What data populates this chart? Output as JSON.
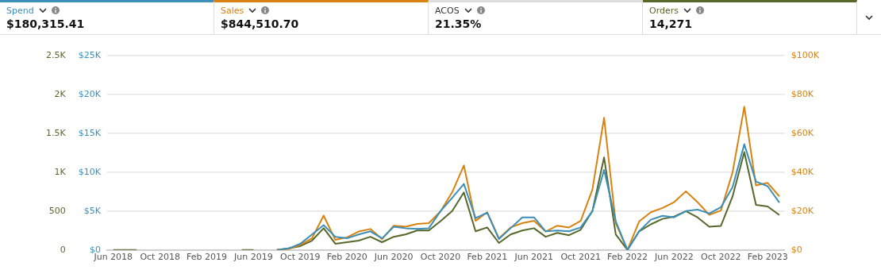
{
  "chart_data": {
    "type": "line",
    "annotations": [
      "$180,315.41",
      "$844,510.70",
      "ACOS",
      "21.35%",
      "14,271"
    ],
    "x": [
      "2018-06",
      "2018-07",
      "2018-08",
      "2018-09",
      "2018-10",
      "2018-11",
      "2018-12",
      "2019-01",
      "2019-02",
      "2019-03",
      "2019-04",
      "2019-05",
      "2019-06",
      "2019-07",
      "2019-08",
      "2019-09",
      "2019-10",
      "2019-11",
      "2019-12",
      "2020-01",
      "2020-02",
      "2020-03",
      "2020-04",
      "2020-05",
      "2020-06",
      "2020-07",
      "2020-08",
      "2020-09",
      "2020-10",
      "2020-11",
      "2020-12",
      "2021-01",
      "2021-02",
      "2021-03",
      "2021-04",
      "2021-05",
      "2021-06",
      "2021-07",
      "2021-08",
      "2021-09",
      "2021-10",
      "2021-11",
      "2021-12",
      "2022-01",
      "2022-02",
      "2022-03",
      "2022-04",
      "2022-05",
      "2022-06",
      "2022-07",
      "2022-08",
      "2022-09",
      "2022-10",
      "2022-11",
      "2022-12",
      "2023-01",
      "2023-02",
      "2023-03"
    ],
    "series": [
      {
        "name": "Spend",
        "color": "#3b8fb8",
        "axis": "y",
        "values": [
          null,
          null,
          null,
          null,
          null,
          null,
          null,
          null,
          null,
          null,
          null,
          null,
          null,
          null,
          0,
          200,
          800,
          2000,
          3200,
          1700,
          1500,
          2000,
          2400,
          1500,
          3000,
          2800,
          2700,
          2800,
          5000,
          6700,
          8500,
          4100,
          4800,
          1400,
          2800,
          4200,
          4200,
          2400,
          2500,
          2400,
          2900,
          5000,
          10300,
          3700,
          0,
          2400,
          3900,
          4400,
          4200,
          5000,
          5200,
          4700,
          5500,
          8100,
          13600,
          8800,
          8200,
          6100
        ]
      },
      {
        "name": "Sales",
        "color": "#d9820f",
        "axis": "y2",
        "values": [
          null,
          null,
          null,
          null,
          null,
          null,
          null,
          null,
          null,
          null,
          null,
          null,
          null,
          null,
          0,
          500,
          2600,
          6000,
          17700,
          5200,
          6500,
          9500,
          10800,
          5600,
          12500,
          12000,
          13400,
          13800,
          19800,
          29700,
          43500,
          15000,
          19400,
          6000,
          11600,
          13800,
          15000,
          9500,
          12500,
          11600,
          15000,
          31000,
          68000,
          13800,
          0,
          14700,
          19400,
          21600,
          24600,
          30200,
          24600,
          18100,
          20300,
          40000,
          73700,
          33200,
          34500,
          27600
        ]
      },
      {
        "name": "Orders",
        "color": "#56692b",
        "axis": "y3",
        "values": [
          0,
          0,
          0,
          null,
          null,
          null,
          null,
          null,
          null,
          null,
          null,
          0,
          0,
          null,
          0,
          20,
          50,
          120,
          280,
          80,
          100,
          120,
          170,
          100,
          170,
          200,
          250,
          250,
          370,
          500,
          740,
          240,
          290,
          90,
          200,
          250,
          280,
          170,
          220,
          190,
          260,
          500,
          1190,
          200,
          0,
          240,
          330,
          400,
          430,
          500,
          420,
          300,
          310,
          690,
          1260,
          580,
          560,
          450
        ]
      }
    ],
    "xlim": [
      "2018-05-15",
      "2023-03-15"
    ],
    "xticks": [
      {
        "value": "2018-06",
        "label": "Jun 2018"
      },
      {
        "value": "2018-10",
        "label": "Oct 2018"
      },
      {
        "value": "2019-02",
        "label": "Feb 2019"
      },
      {
        "value": "2019-06",
        "label": "Jun 2019"
      },
      {
        "value": "2019-10",
        "label": "Oct 2019"
      },
      {
        "value": "2020-02",
        "label": "Feb 2020"
      },
      {
        "value": "2020-06",
        "label": "Jun 2020"
      },
      {
        "value": "2020-10",
        "label": "Oct 2020"
      },
      {
        "value": "2021-02",
        "label": "Feb 2021"
      },
      {
        "value": "2021-06",
        "label": "Jun 2021"
      },
      {
        "value": "2021-10",
        "label": "Oct 2021"
      },
      {
        "value": "2022-02",
        "label": "Feb 2022"
      },
      {
        "value": "2022-06",
        "label": "Jun 2022"
      },
      {
        "value": "2022-10",
        "label": "Oct 2022"
      },
      {
        "value": "2023-02",
        "label": "Feb 2023"
      }
    ],
    "ylim": [
      0,
      25000
    ],
    "yticks": [
      {
        "value": 0,
        "label": "$0"
      },
      {
        "value": 5000,
        "label": "$5K"
      },
      {
        "value": 10000,
        "label": "$10K"
      },
      {
        "value": 15000,
        "label": "$15K"
      },
      {
        "value": 20000,
        "label": "$20K"
      },
      {
        "value": 25000,
        "label": "$25K"
      }
    ],
    "y2lim": [
      0,
      100000
    ],
    "y2ticks": [
      {
        "value": 0,
        "label": "$0"
      },
      {
        "value": 20000,
        "label": "$20K"
      },
      {
        "value": 40000,
        "label": "$40K"
      },
      {
        "value": 60000,
        "label": "$60K"
      },
      {
        "value": 80000,
        "label": "$80K"
      },
      {
        "value": 100000,
        "label": "$100K"
      }
    ],
    "y3lim": [
      0,
      2500
    ],
    "y3ticks": [
      0,
      500,
      {
        "value": 1000,
        "label": "1K"
      },
      {
        "value": 1500,
        "label": "1.5K"
      },
      {
        "value": 2000,
        "label": "2K"
      },
      {
        "value": 2500,
        "label": "2.5K"
      }
    ],
    "grid": "y",
    "legend": "top",
    "marker": "none",
    "line_style": "solid"
  }
}
